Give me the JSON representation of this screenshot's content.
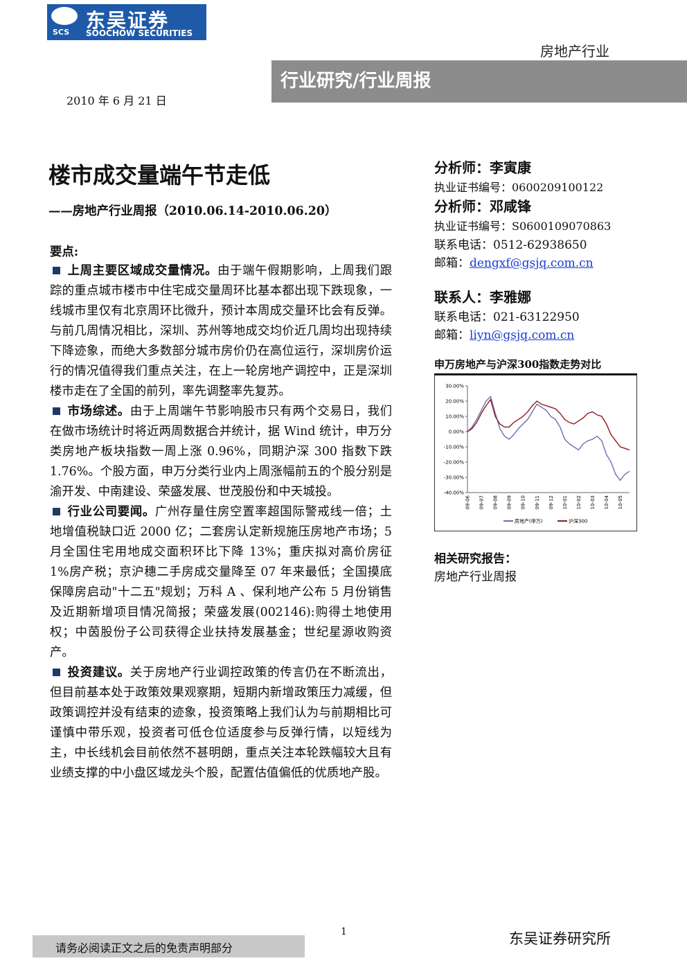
{
  "header": {
    "logo_abbr": "SCS",
    "company_cn": "东吴证券",
    "company_en": "SOOCHOW SECURITIES",
    "sector": "房地产行业",
    "report_type": "行业研究/行业周报",
    "date": "2010 年 6 月 21 日"
  },
  "title": "楼市成交量端午节走低",
  "subtitle": "——房地产行业周报（2010.06.14-2010.06.20）",
  "key_points": {
    "heading": "要点:",
    "items": [
      {
        "heading": "上周主要区域成交量情况。",
        "text": "由于端午假期影响，上周我们跟踪的重点城市楼市中住宅成交量周环比基本都出现下跌现象，一线城市里仅有北京周环比微升，预计本周成交量环比会有反弹。与前几周情况相比，深圳、苏州等地成交均价近几周均出现持续下降迹象，而绝大多数部分城市房价仍在高位运行，深圳房价运行的情况值得我们重点关注，在上一轮房地产调控中，正是深圳楼市走在了全国的前列，率先调整率先复苏。"
      },
      {
        "heading": "市场综述。",
        "text": "由于上周端午节影响股市只有两个交易日，我们在做市场统计时将近两周数据合并统计，据 Wind 统计，申万分类房地产板块指数一周上涨 0.96%，同期沪深 300 指数下跌 1.76%。个股方面，申万分类行业内上周涨幅前五的个股分别是渝开发、中南建设、荣盛发展、世茂股份和中天城投。"
      },
      {
        "heading": "行业公司要闻。",
        "text": "广州存量住房空置率超国际警戒线一倍；土地增值税缺口近 2000 亿；二套房认定新规施压房地产市场；5 月全国住宅用地成交面积环比下降 13%；重庆拟对高价房征 1%房产税；京沪穗二手房成交量降至 07 年来最低；全国摸底 保障房启动\"十二五\"规划；万科 A 、保利地产公布 5 月份销售及近期新增项目情况简报；荣盛发展(002146):购得土地使用权；中茵股份子公司获得企业扶持发展基金；世纪星源收购资产。"
      },
      {
        "heading": "投资建议。",
        "text": "关于房地产行业调控政策的传言仍在不断流出，但目前基本处于政策效果观察期，短期内新增政策压力减缓，但政策调控并没有结束的迹象，投资策略上我们认为与前期相比可谨慎中带乐观，投资者可低仓位适度参与反弹行情，以短线为主，中长线机会目前依然不甚明朗，重点关注本轮跌幅较大且有业绩支撑的中小盘区域龙头个股，配置估值偏低的优质地产股。"
      }
    ]
  },
  "analysts": [
    {
      "name": "分析师：李寅康",
      "cert": "执业证书编号：0600209100122"
    },
    {
      "name": "分析师：邓咸锋",
      "cert": "执业证书编号：S0600109070863",
      "phone": "联系电话：0512-62938650",
      "email_label": "邮箱：",
      "email": "dengxf@gsjq.com.cn"
    }
  ],
  "contact": {
    "name": "联系人：李雅娜",
    "phone": "联系电话：021-63122950",
    "email_label": "邮箱：",
    "email": "liyn@gsjq.com.cn"
  },
  "chart_data": {
    "type": "line",
    "title": "申万房地产与沪深300指数走势对比",
    "categories": [
      "09-06",
      null,
      null,
      "09-07",
      null,
      null,
      "09-08",
      null,
      null,
      "09-09",
      null,
      null,
      "09-10",
      null,
      null,
      "09-11",
      null,
      null,
      "09-12",
      null,
      null,
      "10-01",
      null,
      null,
      "10-02",
      null,
      null,
      "10-03",
      null,
      null,
      "10-04",
      null,
      null,
      "10-05",
      null,
      null
    ],
    "series": [
      {
        "name": "房地产(申万)",
        "color": "#6a6db0",
        "values": [
          0,
          3,
          8,
          14,
          20,
          23,
          12,
          2,
          -3,
          -5,
          -2,
          2,
          5,
          8,
          13,
          18,
          16,
          14,
          10,
          8,
          3,
          -5,
          -8,
          -10,
          -12,
          -8,
          -6,
          -5,
          -3,
          -6,
          -15,
          -20,
          -28,
          -32,
          -28,
          -26
        ]
      },
      {
        "name": "沪深300",
        "color": "#8b1a1a",
        "values": [
          0,
          2,
          6,
          12,
          17,
          21,
          10,
          5,
          3,
          3,
          6,
          8,
          10,
          13,
          17,
          20,
          18,
          17,
          16,
          15,
          12,
          8,
          6,
          5,
          7,
          9,
          12,
          13,
          11,
          10,
          5,
          -2,
          -6,
          -10,
          -11,
          -12
        ]
      }
    ],
    "ylim": [
      -40,
      30
    ],
    "yticks": [
      {
        "value": 30,
        "label": "30.00%"
      },
      {
        "value": 20,
        "label": "20.00%"
      },
      {
        "value": 10,
        "label": "10.00%"
      },
      {
        "value": 0,
        "label": "0.00%"
      },
      {
        "value": -10,
        "label": "-10.00%"
      },
      {
        "value": -20,
        "label": "-20.00%"
      },
      {
        "value": -30,
        "label": "-30.00%"
      },
      {
        "value": -40,
        "label": "-40.00%"
      }
    ],
    "grid": false,
    "legend": "bottom"
  },
  "related": {
    "heading": "相关研究报告：",
    "items": [
      "房地产行业周报"
    ]
  },
  "footer": {
    "disclaimer": "请务必阅读正文之后的免责声明部分",
    "page": "1",
    "institute": "东吴证券研究所"
  }
}
